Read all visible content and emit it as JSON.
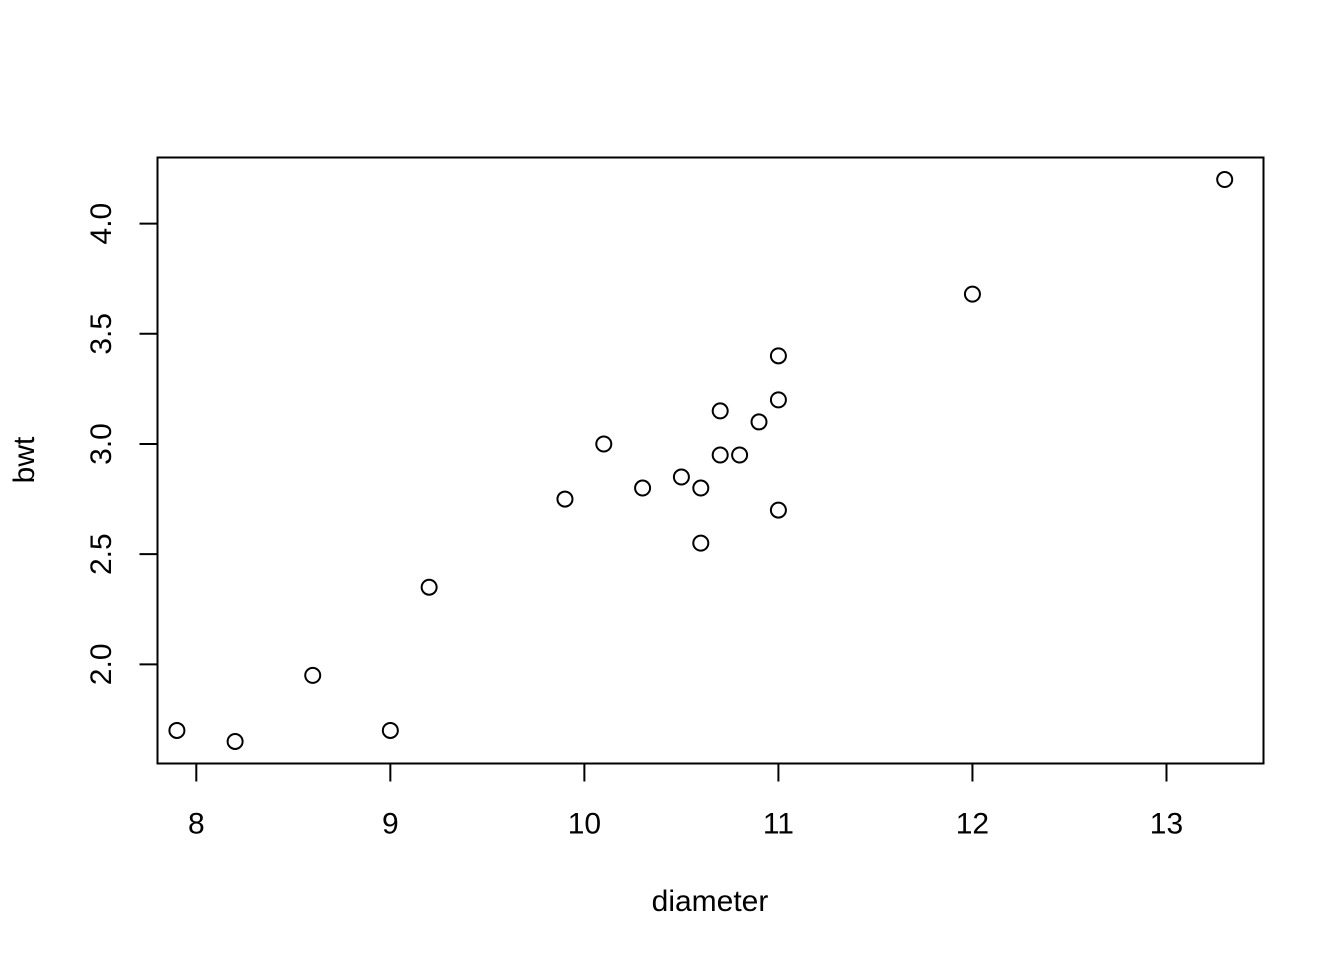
{
  "chart_data": {
    "type": "scatter",
    "title": "",
    "xlabel": "diameter",
    "ylabel": "bwt",
    "xlim": [
      7.8,
      13.5
    ],
    "ylim": [
      1.55,
      4.3
    ],
    "x_ticks": [
      8,
      9,
      10,
      11,
      12,
      13
    ],
    "y_ticks": [
      2.0,
      2.5,
      3.0,
      3.5,
      4.0
    ],
    "x_tick_labels": [
      "8",
      "9",
      "10",
      "11",
      "12",
      "13"
    ],
    "y_tick_labels": [
      "2.0",
      "2.5",
      "3.0",
      "3.5",
      "4.0"
    ],
    "grid": false,
    "legend": "none",
    "marker": "open-circle",
    "colors": {
      "marker_stroke": "#000000",
      "marker_fill": "none",
      "axis": "#000000"
    },
    "series": [
      {
        "points": [
          {
            "x": 7.9,
            "y": 1.7
          },
          {
            "x": 8.2,
            "y": 1.65
          },
          {
            "x": 8.6,
            "y": 1.95
          },
          {
            "x": 9.0,
            "y": 1.7
          },
          {
            "x": 9.2,
            "y": 2.35
          },
          {
            "x": 9.9,
            "y": 2.75
          },
          {
            "x": 10.1,
            "y": 3.0
          },
          {
            "x": 10.3,
            "y": 2.8
          },
          {
            "x": 10.5,
            "y": 2.85
          },
          {
            "x": 10.6,
            "y": 2.8
          },
          {
            "x": 10.6,
            "y": 2.55
          },
          {
            "x": 10.7,
            "y": 3.15
          },
          {
            "x": 10.7,
            "y": 2.95
          },
          {
            "x": 10.8,
            "y": 2.95
          },
          {
            "x": 10.9,
            "y": 3.1
          },
          {
            "x": 11.0,
            "y": 3.4
          },
          {
            "x": 11.0,
            "y": 3.2
          },
          {
            "x": 11.0,
            "y": 2.7
          },
          {
            "x": 12.0,
            "y": 3.68
          },
          {
            "x": 13.3,
            "y": 4.2
          }
        ]
      }
    ]
  }
}
